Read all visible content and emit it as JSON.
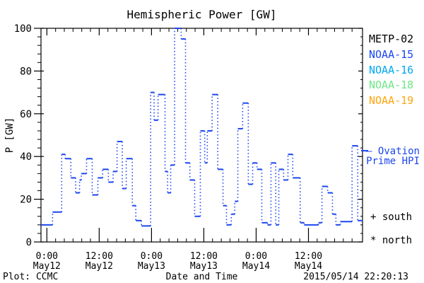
{
  "title": "Hemispheric Power [GW]",
  "footer": {
    "credit": "Plot: CCMC",
    "timestamp": "2015/05/14 22:20:13"
  },
  "legend": {
    "items": [
      {
        "label": "METP-02",
        "color": "#000000"
      },
      {
        "label": "NOAA-15",
        "color": "#1c46f0"
      },
      {
        "label": "NOAA-16",
        "color": "#00a8f0"
      },
      {
        "label": "NOAA-18",
        "color": "#6ee687"
      },
      {
        "label": "NOAA-19",
        "color": "#ffa510"
      }
    ],
    "hpi_line1": "— Ovation",
    "hpi_line2": "Prime HPI",
    "south_marker": "+ south",
    "north_marker": "* north"
  },
  "chart_data": {
    "type": "line",
    "subtype": "step-post",
    "title": "Hemispheric Power [GW]",
    "xlabel": "Date and Time",
    "ylabel": "P [GW]",
    "ylim": [
      0,
      100
    ],
    "y_major_ticks": [
      0,
      20,
      40,
      60,
      80,
      100
    ],
    "y_minor_step": 4,
    "x_range_hours": [
      -1.35,
      72.4
    ],
    "x_major_ticks": [
      {
        "h": 0,
        "time": "0:00",
        "date": "May12"
      },
      {
        "h": 12,
        "time": "12:00",
        "date": "May12"
      },
      {
        "h": 24,
        "time": "0:00",
        "date": "May13"
      },
      {
        "h": 36,
        "time": "12:00",
        "date": "May13"
      },
      {
        "h": 48,
        "time": "0:00",
        "date": "May14"
      },
      {
        "h": 60,
        "time": "12:00",
        "date": "May14"
      }
    ],
    "x_minor_step_hours": 2,
    "grid": false,
    "legend_position": "right-outside",
    "series": [
      {
        "name": "Ovation Prime HPI (NOAA-15)",
        "color": "#1c46f0",
        "units": "GW",
        "t_end_hours": 72.4,
        "steps": [
          [
            -1.35,
            8
          ],
          [
            1.3,
            14
          ],
          [
            3.4,
            41
          ],
          [
            4.2,
            39
          ],
          [
            5.5,
            30
          ],
          [
            6.6,
            23
          ],
          [
            7.5,
            29
          ],
          [
            7.9,
            32
          ],
          [
            9.1,
            39
          ],
          [
            10.4,
            22
          ],
          [
            11.7,
            30
          ],
          [
            12.8,
            34
          ],
          [
            14.1,
            28
          ],
          [
            15.2,
            33
          ],
          [
            16.1,
            47
          ],
          [
            17.3,
            25
          ],
          [
            18.2,
            39
          ],
          [
            19.6,
            17
          ],
          [
            20.4,
            10
          ],
          [
            21.7,
            7.5
          ],
          [
            23.8,
            70
          ],
          [
            24.6,
            57
          ],
          [
            25.5,
            69
          ],
          [
            27.1,
            33
          ],
          [
            27.7,
            23
          ],
          [
            28.4,
            36
          ],
          [
            29.3,
            100
          ],
          [
            30.8,
            95
          ],
          [
            31.8,
            37
          ],
          [
            32.8,
            29
          ],
          [
            33.9,
            12
          ],
          [
            35.2,
            52
          ],
          [
            36.2,
            37
          ],
          [
            36.8,
            52
          ],
          [
            37.9,
            69
          ],
          [
            39.2,
            34
          ],
          [
            40.4,
            17
          ],
          [
            41.2,
            8
          ],
          [
            42.3,
            13
          ],
          [
            43.1,
            19
          ],
          [
            43.8,
            53
          ],
          [
            44.9,
            65
          ],
          [
            46.2,
            27
          ],
          [
            47.2,
            37
          ],
          [
            48.2,
            34
          ],
          [
            49.3,
            9
          ],
          [
            50.6,
            8
          ],
          [
            51.4,
            37
          ],
          [
            52.5,
            8
          ],
          [
            53.2,
            34
          ],
          [
            54.3,
            29
          ],
          [
            55.3,
            41
          ],
          [
            56.4,
            30
          ],
          [
            58.1,
            9
          ],
          [
            59.0,
            8
          ],
          [
            62.3,
            9
          ],
          [
            63.1,
            26
          ],
          [
            64.4,
            23
          ],
          [
            65.5,
            13
          ],
          [
            66.3,
            8
          ],
          [
            67.3,
            9.5
          ],
          [
            70.0,
            45
          ],
          [
            71.3,
            10
          ]
        ]
      }
    ],
    "hpi_marker_value": 42.7
  }
}
